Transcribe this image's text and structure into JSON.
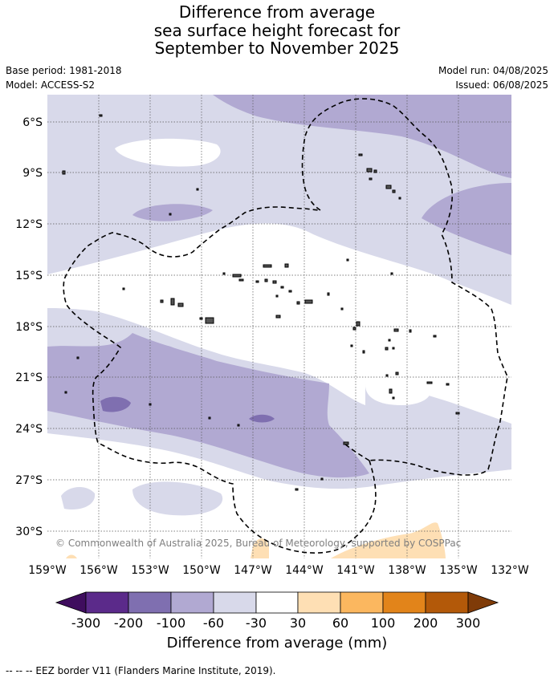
{
  "header": {
    "title_line1": "Difference from average",
    "title_line2": "sea surface height forecast for",
    "title_line3": "September to November 2025",
    "base_period": "Base period: 1981-2018",
    "model": "Model: ACCESS-S2",
    "model_run": "Model run: 04/08/2025",
    "issued": "Issued: 06/08/2025"
  },
  "map": {
    "lat_labels": [
      "6°S",
      "9°S",
      "12°S",
      "15°S",
      "18°S",
      "21°S",
      "24°S",
      "27°S",
      "30°S"
    ],
    "lon_labels": [
      "159°W",
      "156°W",
      "153°W",
      "150°W",
      "147°W",
      "144°W",
      "141°W",
      "138°W",
      "135°W",
      "132°W"
    ],
    "copyright": "© Commonwealth of Australia 2025, Bureau of Meteorology, supported by COSPPac",
    "colors": {
      "band_n60_n30": "#d8d9ea",
      "band_n100_n60": "#b1a9d2",
      "band_n200_n100": "#7f6fb0",
      "band_30_60": "#fedfb4",
      "neutral": "#ffffff"
    }
  },
  "colorbar": {
    "labels": [
      "-300",
      "-200",
      "-100",
      "-60",
      "-30",
      "30",
      "60",
      "100",
      "200",
      "300"
    ],
    "colors": [
      "#3f0d5e",
      "#5b2a8a",
      "#7f6fb0",
      "#b1a9d2",
      "#d8d9ea",
      "#ffffff",
      "#fedfb4",
      "#fbb75f",
      "#e2841a",
      "#b35909",
      "#7f3b08"
    ],
    "title": "Difference from average (mm)"
  },
  "footer": {
    "legend": "--  --  -- EEZ border V11 (Flanders Marine Institute, 2019)."
  }
}
